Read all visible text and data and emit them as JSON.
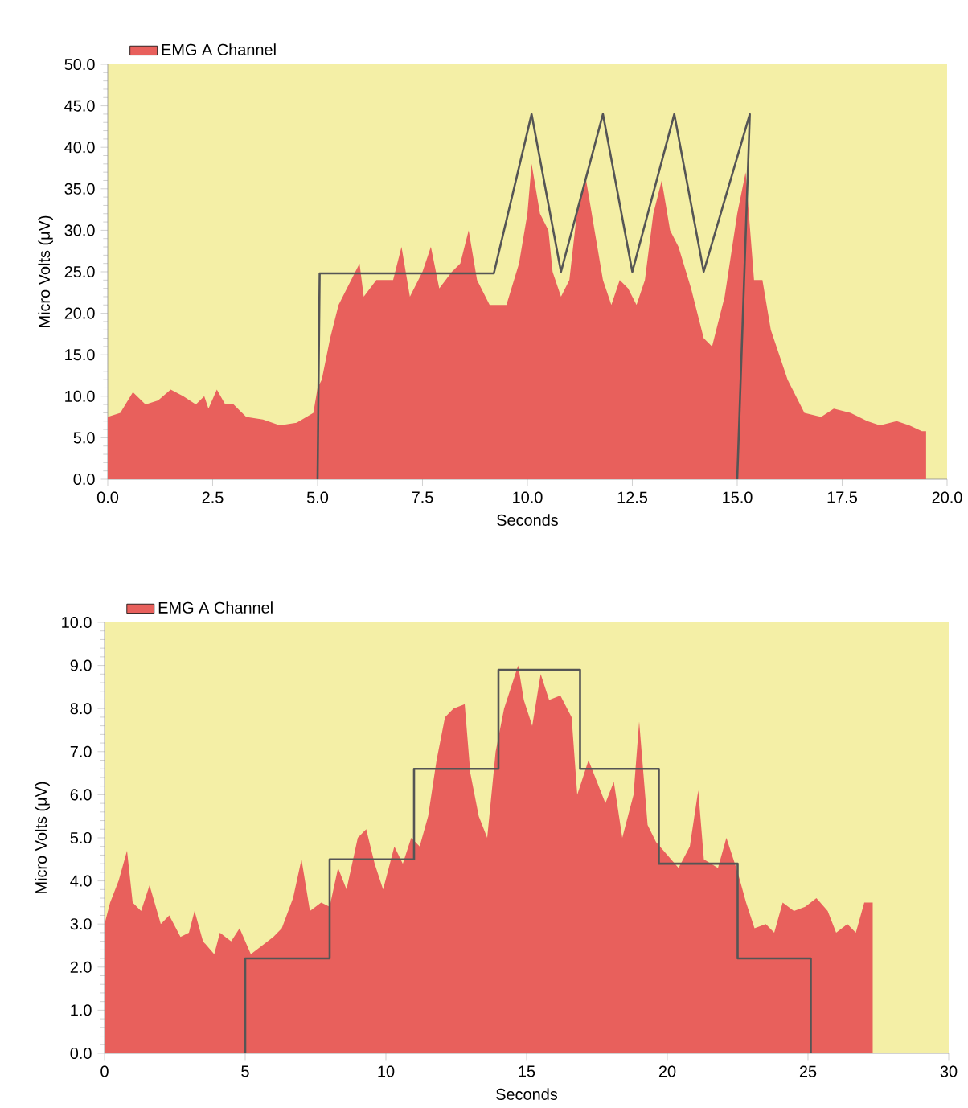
{
  "chart_data": [
    {
      "type": "area",
      "xlabel": "Seconds",
      "ylabel": "Micro Volts (μV)",
      "legend": "top left",
      "xlim": [
        0,
        20
      ],
      "ylim": [
        0,
        50
      ],
      "xticks": [
        {
          "value": 0,
          "label": "0.0"
        },
        {
          "value": 2.5,
          "label": "2.5"
        },
        {
          "value": 5,
          "label": "5.0"
        },
        {
          "value": 7.5,
          "label": "7.5"
        },
        {
          "value": 10,
          "label": "10.0"
        },
        {
          "value": 12.5,
          "label": "12.5"
        },
        {
          "value": 15,
          "label": "15.0"
        },
        {
          "value": 17.5,
          "label": "17.5"
        },
        {
          "value": 20,
          "label": "20.0"
        }
      ],
      "yticks": [
        {
          "value": 0,
          "label": "0.0"
        },
        {
          "value": 5,
          "label": "5.0"
        },
        {
          "value": 10,
          "label": "10.0"
        },
        {
          "value": 15,
          "label": "15.0"
        },
        {
          "value": 20,
          "label": "20.0"
        },
        {
          "value": 25,
          "label": "25.0"
        },
        {
          "value": 30,
          "label": "30.0"
        },
        {
          "value": 35,
          "label": "35.0"
        },
        {
          "value": 40,
          "label": "40.0"
        },
        {
          "value": 45,
          "label": "45.0"
        },
        {
          "value": 50,
          "label": "50.0"
        }
      ],
      "series": [
        {
          "name": "EMG  A  Channel",
          "color": "#e8605c",
          "x": [
            0,
            0.3,
            0.6,
            0.9,
            1.2,
            1.5,
            1.8,
            2.1,
            2.3,
            2.4,
            2.6,
            2.8,
            3.0,
            3.3,
            3.7,
            4.1,
            4.5,
            4.9,
            5.0,
            5.1,
            5.3,
            5.5,
            5.8,
            6.0,
            6.1,
            6.4,
            6.8,
            7.0,
            7.2,
            7.5,
            7.7,
            7.9,
            8.2,
            8.4,
            8.6,
            8.8,
            9.1,
            9.5,
            9.8,
            10.0,
            10.1,
            10.3,
            10.5,
            10.6,
            10.8,
            11.0,
            11.2,
            11.4,
            11.6,
            11.8,
            12.0,
            12.2,
            12.4,
            12.6,
            12.8,
            13.0,
            13.2,
            13.4,
            13.6,
            13.9,
            14.2,
            14.4,
            14.7,
            15.0,
            15.2,
            15.4,
            15.6,
            15.8,
            16.2,
            16.6,
            17.0,
            17.3,
            17.7,
            18.1,
            18.4,
            18.8,
            19.1,
            19.4,
            19.5
          ],
          "values": [
            7.5,
            8,
            10.5,
            9,
            9.5,
            10.8,
            10,
            9,
            10,
            8.5,
            10.8,
            9,
            9,
            7.5,
            7.2,
            6.5,
            6.8,
            8,
            11,
            12,
            17,
            21,
            24,
            26,
            22,
            24,
            24,
            28,
            22,
            25,
            28,
            23,
            25,
            26,
            30,
            24,
            21,
            21,
            26,
            32,
            38,
            32,
            30,
            25,
            22,
            24,
            33,
            36,
            30,
            24,
            21,
            24,
            23,
            21,
            24,
            32,
            36,
            30,
            28,
            23,
            17,
            16,
            22,
            32,
            37,
            24,
            24,
            18,
            12,
            8,
            7.5,
            8.5,
            8,
            7,
            6.5,
            7,
            6.5,
            5.8,
            5.8
          ]
        },
        {
          "type": "line",
          "color": "#555555",
          "x": [
            5,
            5.05,
            9.2,
            10.1,
            10.8,
            11.8,
            12.5,
            13.5,
            14.2,
            15.3,
            15.0
          ],
          "values": [
            0,
            24.8,
            24.8,
            44,
            25,
            44,
            25,
            44,
            25,
            44,
            0
          ]
        }
      ]
    },
    {
      "type": "area",
      "xlabel": "Seconds",
      "ylabel": "Micro Volts (μV)",
      "legend": "top left",
      "xlim": [
        0,
        30
      ],
      "ylim": [
        0,
        10
      ],
      "xticks": [
        0,
        5,
        10,
        15,
        20,
        25,
        30
      ],
      "yticks": [
        {
          "value": 0,
          "label": "0.0"
        },
        {
          "value": 1,
          "label": "1.0"
        },
        {
          "value": 2,
          "label": "2.0"
        },
        {
          "value": 3,
          "label": "3.0"
        },
        {
          "value": 4,
          "label": "4.0"
        },
        {
          "value": 5,
          "label": "5.0"
        },
        {
          "value": 6,
          "label": "6.0"
        },
        {
          "value": 7,
          "label": "7.0"
        },
        {
          "value": 8,
          "label": "8.0"
        },
        {
          "value": 9,
          "label": "9.0"
        },
        {
          "value": 10,
          "label": "10.0"
        }
      ],
      "series": [
        {
          "name": "EMG  A  Channel",
          "color": "#e8605c",
          "x": [
            0,
            0.2,
            0.5,
            0.8,
            1.0,
            1.3,
            1.6,
            2.0,
            2.3,
            2.7,
            3.0,
            3.2,
            3.5,
            3.9,
            4.1,
            4.5,
            4.8,
            5.2,
            5.6,
            6.0,
            6.3,
            6.7,
            7.0,
            7.3,
            7.7,
            8.0,
            8.3,
            8.6,
            9.0,
            9.3,
            9.6,
            9.9,
            10.3,
            10.6,
            10.9,
            11.2,
            11.5,
            11.8,
            12.1,
            12.4,
            12.8,
            13.0,
            13.3,
            13.6,
            13.9,
            14.2,
            14.5,
            14.7,
            14.9,
            15.2,
            15.5,
            15.8,
            16.2,
            16.6,
            16.8,
            17.2,
            17.5,
            17.8,
            18.1,
            18.4,
            18.8,
            19.0,
            19.3,
            19.6,
            20.0,
            20.4,
            20.8,
            21.1,
            21.3,
            21.8,
            22.1,
            22.5,
            22.8,
            23.1,
            23.5,
            23.8,
            24.1,
            24.5,
            24.9,
            25.3,
            25.7,
            26.0,
            26.4,
            26.7,
            27.0,
            27.3
          ],
          "values": [
            3,
            3.5,
            4,
            4.7,
            3.5,
            3.3,
            3.9,
            3.0,
            3.2,
            2.7,
            2.8,
            3.3,
            2.6,
            2.3,
            2.8,
            2.6,
            2.9,
            2.3,
            2.5,
            2.7,
            2.9,
            3.6,
            4.5,
            3.3,
            3.5,
            3.4,
            4.3,
            3.8,
            5.0,
            5.2,
            4.4,
            3.8,
            4.8,
            4.4,
            5.0,
            4.8,
            5.5,
            6.8,
            7.8,
            8.0,
            8.1,
            6.5,
            5.5,
            5.0,
            7.0,
            8.0,
            8.6,
            9.0,
            8.2,
            7.6,
            8.8,
            8.2,
            8.3,
            7.8,
            6.0,
            6.8,
            6.3,
            5.8,
            6.3,
            5.0,
            6.0,
            7.7,
            5.3,
            4.9,
            4.6,
            4.3,
            4.8,
            6.1,
            4.5,
            4.3,
            5.0,
            4.2,
            3.5,
            2.9,
            3.0,
            2.8,
            3.5,
            3.3,
            3.4,
            3.6,
            3.3,
            2.8,
            3.0,
            2.8,
            3.5,
            3.5
          ]
        },
        {
          "type": "line",
          "color": "#555555",
          "x": [
            5,
            5,
            8,
            8,
            11,
            11,
            14,
            14,
            16.9,
            16.9,
            19.7,
            19.7,
            22.5,
            22.5,
            25.1,
            25.1
          ],
          "values": [
            0,
            2.2,
            2.2,
            4.5,
            4.5,
            6.6,
            6.6,
            8.9,
            8.9,
            6.6,
            6.6,
            4.4,
            4.4,
            2.2,
            2.2,
            0
          ]
        }
      ]
    }
  ]
}
